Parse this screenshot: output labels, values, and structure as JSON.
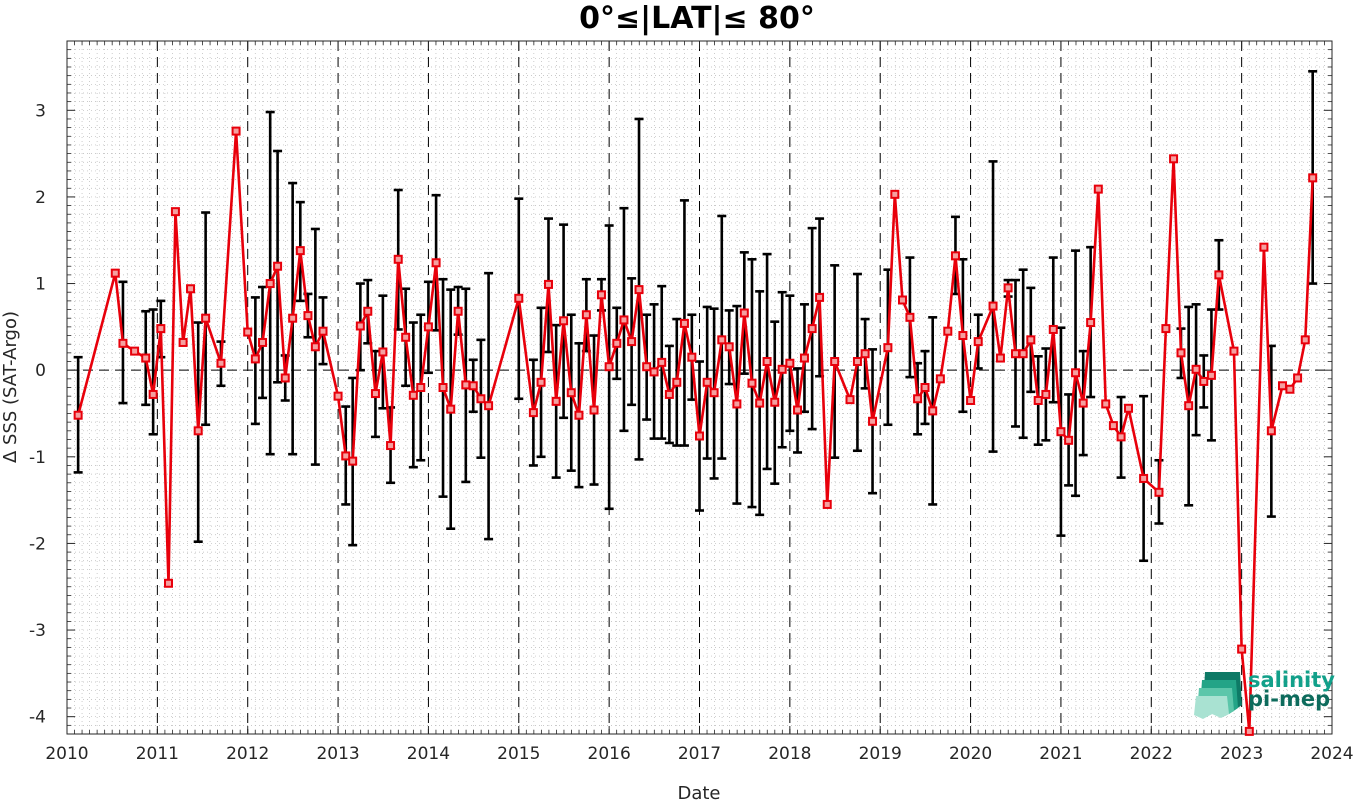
{
  "chart_data": {
    "type": "line",
    "title": "0°≤|LAT|≤ 80°",
    "xlabel": "Date",
    "ylabel": "Δ SSS (SAT-Argo)",
    "xlim": [
      "2010-01-01",
      "2024-01-01"
    ],
    "ylim": [
      -4.2,
      3.8
    ],
    "x_ticks": [
      "2010",
      "2011",
      "2012",
      "2013",
      "2014",
      "2015",
      "2016",
      "2017",
      "2018",
      "2019",
      "2020",
      "2021",
      "2022",
      "2023",
      "2024"
    ],
    "y_ticks": [
      -4,
      -3,
      -2,
      -1,
      0,
      1,
      2,
      3
    ],
    "y_tick_labels": [
      "-4",
      "-3",
      "-2",
      "-1",
      "0",
      "1",
      "2",
      "3"
    ],
    "grid": "dotted minor grid",
    "year_dividers": "dashed vertical lines at each January 1",
    "zero_line": "dashed horizontal line at 0",
    "colors": {
      "series": "#e8000b",
      "errorbar": "#000000",
      "logo": "#1a8c7c"
    },
    "series": [
      {
        "marker": "square",
        "points": [
          {
            "x": "2010-02-15",
            "y": -0.52,
            "lo": -1.18,
            "hi": 0.15
          },
          {
            "x": "2010-07-15",
            "y": 1.12
          },
          {
            "x": "2010-08-15",
            "y": 0.31,
            "lo": -0.38,
            "hi": 1.02
          },
          {
            "x": "2010-10-01",
            "y": 0.22
          },
          {
            "x": "2010-11-15",
            "y": 0.14,
            "lo": -0.4,
            "hi": 0.68
          },
          {
            "x": "2010-12-15",
            "y": -0.28,
            "lo": -0.74,
            "hi": 0.7
          },
          {
            "x": "2011-01-15",
            "y": 0.48,
            "lo": 0.15,
            "hi": 0.8
          },
          {
            "x": "2011-02-15",
            "y": -2.46
          },
          {
            "x": "2011-03-15",
            "y": 1.83
          },
          {
            "x": "2011-04-15",
            "y": 0.32
          },
          {
            "x": "2011-05-15",
            "y": 0.94
          },
          {
            "x": "2011-06-15",
            "y": -0.7,
            "lo": -1.98,
            "hi": 0.55
          },
          {
            "x": "2011-07-15",
            "y": 0.6,
            "lo": -0.63,
            "hi": 1.82
          },
          {
            "x": "2011-09-15",
            "y": 0.08,
            "lo": -0.18,
            "hi": 0.33
          },
          {
            "x": "2011-11-15",
            "y": 2.76
          },
          {
            "x": "2012-01-01",
            "y": 0.44
          },
          {
            "x": "2012-02-01",
            "y": 0.13,
            "lo": -0.62,
            "hi": 0.84
          },
          {
            "x": "2012-03-01",
            "y": 0.32,
            "lo": -0.32,
            "hi": 0.96
          },
          {
            "x": "2012-04-01",
            "y": 1.0,
            "lo": -0.97,
            "hi": 2.98
          },
          {
            "x": "2012-05-01",
            "y": 1.2,
            "lo": -0.14,
            "hi": 2.53
          },
          {
            "x": "2012-06-01",
            "y": -0.09,
            "lo": -0.35,
            "hi": 0.17
          },
          {
            "x": "2012-07-01",
            "y": 0.6,
            "lo": -0.97,
            "hi": 2.16
          },
          {
            "x": "2012-08-01",
            "y": 1.38,
            "lo": 0.8,
            "hi": 1.94
          },
          {
            "x": "2012-09-01",
            "y": 0.63,
            "lo": 0.38,
            "hi": 0.88
          },
          {
            "x": "2012-10-01",
            "y": 0.27,
            "lo": -1.09,
            "hi": 1.63
          },
          {
            "x": "2012-11-01",
            "y": 0.45,
            "lo": 0.07,
            "hi": 0.84
          },
          {
            "x": "2013-01-01",
            "y": -0.3
          },
          {
            "x": "2013-02-01",
            "y": -0.99,
            "lo": -1.55,
            "hi": -0.42
          },
          {
            "x": "2013-03-01",
            "y": -1.05,
            "lo": -2.02,
            "hi": -0.09
          },
          {
            "x": "2013-04-01",
            "y": 0.51,
            "lo": 0.0,
            "hi": 1.0
          },
          {
            "x": "2013-05-01",
            "y": 0.68,
            "lo": 0.31,
            "hi": 1.04
          },
          {
            "x": "2013-06-01",
            "y": -0.27,
            "lo": -0.77,
            "hi": 0.22
          },
          {
            "x": "2013-07-01",
            "y": 0.21,
            "lo": -0.44,
            "hi": 0.86
          },
          {
            "x": "2013-08-01",
            "y": -0.87,
            "lo": -1.3,
            "hi": -0.43
          },
          {
            "x": "2013-09-01",
            "y": 1.28,
            "lo": 0.47,
            "hi": 2.08
          },
          {
            "x": "2013-10-01",
            "y": 0.38,
            "lo": -0.18,
            "hi": 0.94
          },
          {
            "x": "2013-11-01",
            "y": -0.29,
            "lo": -1.12,
            "hi": 0.55
          },
          {
            "x": "2013-12-01",
            "y": -0.2,
            "lo": -1.04,
            "hi": 0.64
          },
          {
            "x": "2014-01-01",
            "y": 0.5,
            "lo": -0.03,
            "hi": 1.02
          },
          {
            "x": "2014-02-01",
            "y": 1.24,
            "lo": 0.46,
            "hi": 2.02
          },
          {
            "x": "2014-03-01",
            "y": -0.2,
            "lo": -1.46,
            "hi": 1.05
          },
          {
            "x": "2014-04-01",
            "y": -0.45,
            "lo": -1.83,
            "hi": 0.93
          },
          {
            "x": "2014-05-01",
            "y": 0.68,
            "lo": 0.41,
            "hi": 0.96
          },
          {
            "x": "2014-06-01",
            "y": -0.17,
            "lo": -1.29,
            "hi": 0.94
          },
          {
            "x": "2014-07-01",
            "y": -0.18,
            "lo": -0.48,
            "hi": 0.12
          },
          {
            "x": "2014-08-01",
            "y": -0.33,
            "lo": -1.01,
            "hi": 0.35
          },
          {
            "x": "2014-09-01",
            "y": -0.41,
            "lo": -1.95,
            "hi": 1.12
          },
          {
            "x": "2015-01-01",
            "y": 0.83,
            "lo": -0.33,
            "hi": 1.98
          },
          {
            "x": "2015-03-01",
            "y": -0.49,
            "lo": -1.1,
            "hi": 0.12
          },
          {
            "x": "2015-04-01",
            "y": -0.14,
            "lo": -1.0,
            "hi": 0.72
          },
          {
            "x": "2015-05-01",
            "y": 0.99,
            "lo": 0.21,
            "hi": 1.75
          },
          {
            "x": "2015-06-01",
            "y": -0.36,
            "lo": -1.24,
            "hi": 0.52
          },
          {
            "x": "2015-07-01",
            "y": 0.57,
            "lo": -0.55,
            "hi": 1.68
          },
          {
            "x": "2015-08-01",
            "y": -0.26,
            "lo": -1.16,
            "hi": 0.64
          },
          {
            "x": "2015-09-01",
            "y": -0.52,
            "lo": -1.35,
            "hi": 0.31
          },
          {
            "x": "2015-10-01",
            "y": 0.64,
            "lo": 0.22,
            "hi": 1.05
          },
          {
            "x": "2015-11-01",
            "y": -0.46,
            "lo": -1.32,
            "hi": 0.4
          },
          {
            "x": "2015-12-01",
            "y": 0.87,
            "lo": 0.69,
            "hi": 1.05
          },
          {
            "x": "2016-01-01",
            "y": 0.04,
            "lo": -1.6,
            "hi": 1.67
          },
          {
            "x": "2016-02-01",
            "y": 0.31,
            "lo": -0.1,
            "hi": 0.72
          },
          {
            "x": "2016-03-01",
            "y": 0.58,
            "lo": -0.7,
            "hi": 1.87
          },
          {
            "x": "2016-04-01",
            "y": 0.33,
            "lo": -0.4,
            "hi": 1.06
          },
          {
            "x": "2016-05-01",
            "y": 0.93,
            "lo": -1.03,
            "hi": 2.9
          },
          {
            "x": "2016-06-01",
            "y": 0.04,
            "lo": -0.57,
            "hi": 0.64
          },
          {
            "x": "2016-07-01",
            "y": -0.02,
            "lo": -0.79,
            "hi": 0.76
          },
          {
            "x": "2016-08-01",
            "y": 0.09,
            "lo": -0.79,
            "hi": 0.97
          },
          {
            "x": "2016-09-01",
            "y": -0.28,
            "lo": -0.84,
            "hi": 0.28
          },
          {
            "x": "2016-10-01",
            "y": -0.14,
            "lo": -0.87,
            "hi": 0.59
          },
          {
            "x": "2016-11-01",
            "y": 0.54,
            "lo": -0.87,
            "hi": 1.96
          },
          {
            "x": "2016-12-01",
            "y": 0.15,
            "lo": -0.34,
            "hi": 0.64
          },
          {
            "x": "2017-01-01",
            "y": -0.76,
            "lo": -1.62,
            "hi": 0.1
          },
          {
            "x": "2017-02-01",
            "y": -0.14,
            "lo": -1.02,
            "hi": 0.73
          },
          {
            "x": "2017-03-01",
            "y": -0.26,
            "lo": -1.25,
            "hi": 0.71
          },
          {
            "x": "2017-04-01",
            "y": 0.35,
            "lo": -1.02,
            "hi": 1.78
          },
          {
            "x": "2017-05-01",
            "y": 0.27,
            "lo": -0.16,
            "hi": 0.69
          },
          {
            "x": "2017-06-01",
            "y": -0.39,
            "lo": -1.54,
            "hi": 0.74
          },
          {
            "x": "2017-07-01",
            "y": 0.66,
            "lo": -0.04,
            "hi": 1.36
          },
          {
            "x": "2017-08-01",
            "y": -0.15,
            "lo": -1.58,
            "hi": 1.28
          },
          {
            "x": "2017-09-01",
            "y": -0.38,
            "lo": -1.67,
            "hi": 0.91
          },
          {
            "x": "2017-10-01",
            "y": 0.1,
            "lo": -1.14,
            "hi": 1.34
          },
          {
            "x": "2017-11-01",
            "y": -0.37,
            "lo": -1.31,
            "hi": 0.56
          },
          {
            "x": "2017-12-01",
            "y": 0.01,
            "lo": -0.89,
            "hi": 0.9
          },
          {
            "x": "2018-01-01",
            "y": 0.08,
            "lo": -0.7,
            "hi": 0.86
          },
          {
            "x": "2018-02-01",
            "y": -0.46,
            "lo": -0.95,
            "hi": 0.02
          },
          {
            "x": "2018-03-01",
            "y": 0.14,
            "lo": -0.48,
            "hi": 0.76
          },
          {
            "x": "2018-04-01",
            "y": 0.48,
            "lo": -0.68,
            "hi": 1.64
          },
          {
            "x": "2018-05-01",
            "y": 0.84,
            "lo": -0.07,
            "hi": 1.75
          },
          {
            "x": "2018-06-01",
            "y": -1.55
          },
          {
            "x": "2018-07-01",
            "y": 0.1,
            "lo": -1.01,
            "hi": 1.21
          },
          {
            "x": "2018-09-01",
            "y": -0.34
          },
          {
            "x": "2018-10-01",
            "y": 0.1,
            "lo": -0.93,
            "hi": 1.11
          },
          {
            "x": "2018-11-01",
            "y": 0.19,
            "lo": -0.21,
            "hi": 0.59
          },
          {
            "x": "2018-12-01",
            "y": -0.59,
            "lo": -1.42,
            "hi": 0.24
          },
          {
            "x": "2019-02-01",
            "y": 0.26,
            "lo": -0.63,
            "hi": 1.16
          },
          {
            "x": "2019-03-01",
            "y": 2.03
          },
          {
            "x": "2019-04-01",
            "y": 0.81
          },
          {
            "x": "2019-05-01",
            "y": 0.61,
            "lo": -0.08,
            "hi": 1.3
          },
          {
            "x": "2019-06-01",
            "y": -0.33,
            "lo": -0.74,
            "hi": 0.08
          },
          {
            "x": "2019-07-01",
            "y": -0.2,
            "lo": -0.62,
            "hi": 0.22
          },
          {
            "x": "2019-08-01",
            "y": -0.47,
            "lo": -1.55,
            "hi": 0.61
          },
          {
            "x": "2019-09-01",
            "y": -0.1
          },
          {
            "x": "2019-10-01",
            "y": 0.45
          },
          {
            "x": "2019-11-01",
            "y": 1.32,
            "lo": 0.88,
            "hi": 1.77
          },
          {
            "x": "2019-12-01",
            "y": 0.4,
            "lo": -0.48,
            "hi": 1.28
          },
          {
            "x": "2020-01-01",
            "y": -0.35
          },
          {
            "x": "2020-02-01",
            "y": 0.33,
            "lo": 0.02,
            "hi": 0.64
          },
          {
            "x": "2020-04-01",
            "y": 0.74,
            "lo": -0.94,
            "hi": 2.41
          },
          {
            "x": "2020-05-01",
            "y": 0.14
          },
          {
            "x": "2020-06-01",
            "y": 0.95,
            "lo": 0.85,
            "hi": 1.04
          },
          {
            "x": "2020-07-01",
            "y": 0.19,
            "lo": -0.65,
            "hi": 1.04
          },
          {
            "x": "2020-08-01",
            "y": 0.19,
            "lo": -0.78,
            "hi": 1.16
          },
          {
            "x": "2020-09-01",
            "y": 0.35,
            "lo": -0.25,
            "hi": 0.95
          },
          {
            "x": "2020-10-01",
            "y": -0.35,
            "lo": -0.86,
            "hi": 0.16
          },
          {
            "x": "2020-11-01",
            "y": -0.28,
            "lo": -0.81,
            "hi": 0.25
          },
          {
            "x": "2020-12-01",
            "y": 0.47,
            "lo": -0.37,
            "hi": 1.3
          },
          {
            "x": "2021-01-01",
            "y": -0.71,
            "lo": -1.91,
            "hi": 0.49
          },
          {
            "x": "2021-02-01",
            "y": -0.81,
            "lo": -1.33,
            "hi": -0.28
          },
          {
            "x": "2021-03-01",
            "y": -0.03,
            "lo": -1.45,
            "hi": 1.38
          },
          {
            "x": "2021-04-01",
            "y": -0.38,
            "lo": -0.98,
            "hi": 0.22
          },
          {
            "x": "2021-05-01",
            "y": 0.55,
            "lo": -0.31,
            "hi": 1.42
          },
          {
            "x": "2021-06-01",
            "y": 2.09
          },
          {
            "x": "2021-07-01",
            "y": -0.39
          },
          {
            "x": "2021-08-01",
            "y": -0.64
          },
          {
            "x": "2021-09-01",
            "y": -0.77,
            "lo": -1.24,
            "hi": -0.31
          },
          {
            "x": "2021-10-01",
            "y": -0.44
          },
          {
            "x": "2021-12-01",
            "y": -1.25,
            "lo": -2.2,
            "hi": -0.3
          },
          {
            "x": "2022-02-01",
            "y": -1.41,
            "lo": -1.77,
            "hi": -1.04
          },
          {
            "x": "2022-03-01",
            "y": 0.48
          },
          {
            "x": "2022-04-01",
            "y": 2.44
          },
          {
            "x": "2022-05-01",
            "y": 0.2,
            "lo": -0.09,
            "hi": 0.48
          },
          {
            "x": "2022-06-01",
            "y": -0.41,
            "lo": -1.56,
            "hi": 0.73
          },
          {
            "x": "2022-07-01",
            "y": 0.01,
            "lo": -0.75,
            "hi": 0.76
          },
          {
            "x": "2022-08-01",
            "y": -0.13,
            "lo": -0.43,
            "hi": 0.17
          },
          {
            "x": "2022-09-01",
            "y": -0.06,
            "lo": -0.81,
            "hi": 0.7
          },
          {
            "x": "2022-10-01",
            "y": 1.1,
            "lo": 0.7,
            "hi": 1.5
          },
          {
            "x": "2022-12-01",
            "y": 0.22
          },
          {
            "x": "2023-01-01",
            "y": -3.22
          },
          {
            "x": "2023-02-01",
            "y": -4.17
          },
          {
            "x": "2023-04-01",
            "y": 1.42
          },
          {
            "x": "2023-05-01",
            "y": -0.7,
            "lo": -1.69,
            "hi": 0.28
          },
          {
            "x": "2023-06-15",
            "y": -0.18
          },
          {
            "x": "2023-07-15",
            "y": -0.22
          },
          {
            "x": "2023-08-15",
            "y": -0.09
          },
          {
            "x": "2023-09-15",
            "y": 0.35
          },
          {
            "x": "2023-10-15",
            "y": 2.22,
            "lo": 1.0,
            "hi": 3.45
          }
        ]
      }
    ]
  },
  "logo": {
    "line1": "salinity",
    "line2": "pi-mep"
  }
}
